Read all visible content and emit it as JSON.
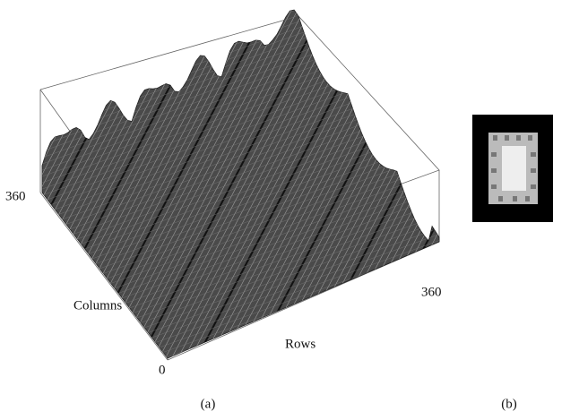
{
  "figure": {
    "panel_a": {
      "y_axis_end": "360",
      "y_axis_label": "Columns",
      "x_axis_label": "Rows",
      "x_axis_end": "360",
      "origin": "0",
      "caption": "(a)"
    },
    "panel_b": {
      "caption": "(b)"
    }
  }
}
